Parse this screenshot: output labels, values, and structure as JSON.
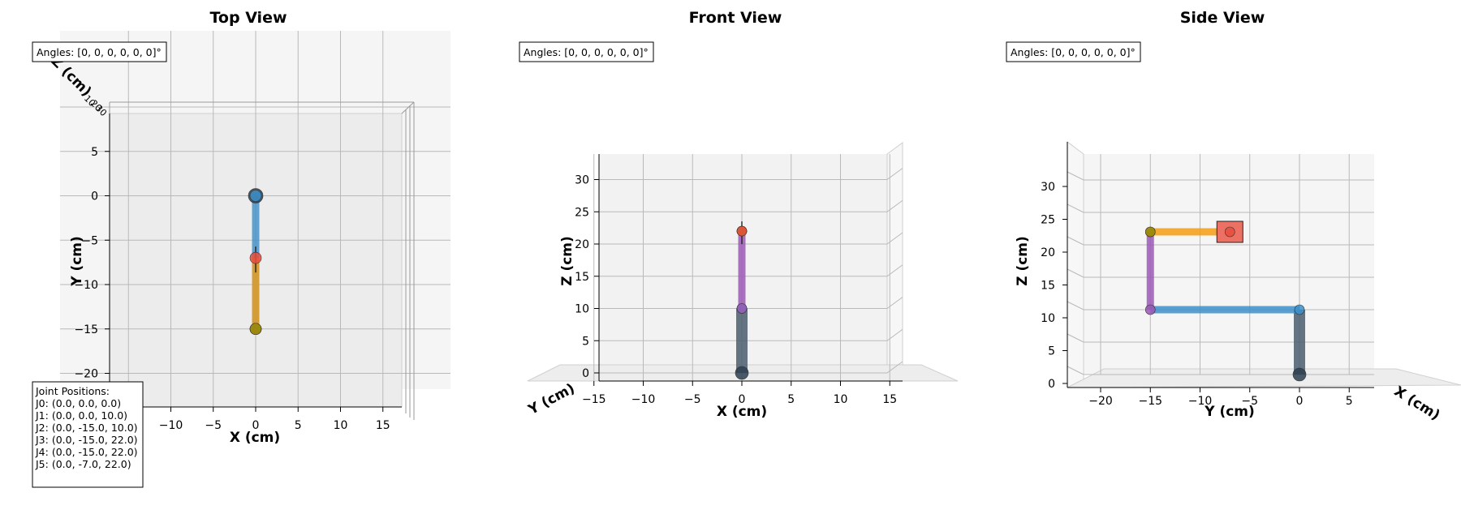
{
  "chart_data": [
    {
      "type": "line",
      "title": "Top View",
      "xlabel": "X (cm)",
      "ylabel": "Y (cm)",
      "zlabel": "Z (cm)",
      "xticks": [
        "−10",
        "−5",
        "0",
        "5",
        "10",
        "15"
      ],
      "yticks": [
        "5",
        "0",
        "−5",
        "−10",
        "−15",
        "−20"
      ],
      "angles_text": "Angles: [0, 0, 0, 0, 0, 0]°",
      "joint_box": {
        "title": "Joint Positions:",
        "lines": [
          "J0: (0.0, 0.0, 0.0)",
          "J1: (0.0, 0.0, 10.0)",
          "J2: (0.0, -15.0, 10.0)",
          "J3: (0.0, -15.0, 22.0)",
          "J4: (0.0, -15.0, 22.0)",
          "J5: (0.0, -7.0, 22.0)"
        ]
      },
      "grid": true
    },
    {
      "type": "line",
      "title": "Front View",
      "xlabel": "X (cm)",
      "ylabel": "Y (cm)",
      "zlabel": "Z (cm)",
      "xticks": [
        "−15",
        "−10",
        "−5",
        "0",
        "5",
        "10",
        "15"
      ],
      "zticks": [
        "0",
        "5",
        "10",
        "15",
        "20",
        "25",
        "30"
      ],
      "angles_text": "Angles: [0, 0, 0, 0, 0, 0]°",
      "grid": true
    },
    {
      "type": "line",
      "title": "Side View",
      "xlabel": "X (cm)",
      "ylabel": "Y (cm)",
      "zlabel": "Z (cm)",
      "yticks": [
        "−20",
        "−15",
        "−10",
        "−5",
        "0",
        "5"
      ],
      "zticks": [
        "0",
        "5",
        "10",
        "15",
        "20",
        "25",
        "30"
      ],
      "angles_text": "Angles: [0, 0, 0, 0, 0, 0]°",
      "grid": true
    }
  ],
  "arm": {
    "joints": [
      {
        "name": "J0",
        "x": 0.0,
        "y": 0.0,
        "z": 0.0
      },
      {
        "name": "J1",
        "x": 0.0,
        "y": 0.0,
        "z": 10.0
      },
      {
        "name": "J2",
        "x": 0.0,
        "y": -15.0,
        "z": 10.0
      },
      {
        "name": "J3",
        "x": 0.0,
        "y": -15.0,
        "z": 22.0
      },
      {
        "name": "J4",
        "x": 0.0,
        "y": -15.0,
        "z": 22.0
      },
      {
        "name": "J5",
        "x": 0.0,
        "y": -7.0,
        "z": 22.0
      }
    ],
    "link_colors": [
      "#4b5d6e",
      "#3d8fc9",
      "#9b59b6",
      "#f39c12",
      "#f39c12"
    ],
    "joint_colors": [
      "#2c3e50",
      "#3d8fc9",
      "#9b59b6",
      "#9c8a0d",
      "#9c8a0d",
      "#e74c3c"
    ],
    "end_effector_color": "#ec7063"
  }
}
